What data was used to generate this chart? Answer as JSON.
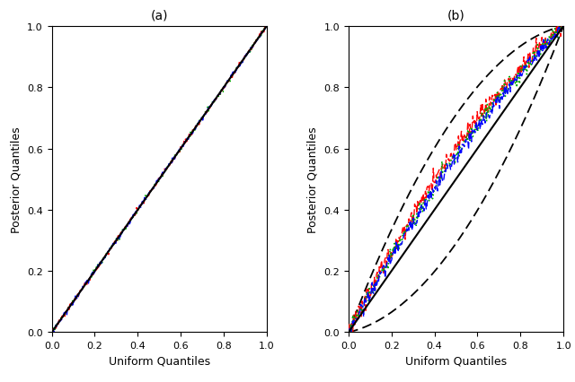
{
  "title_a": "(a)",
  "title_b": "(b)",
  "xlabel": "Uniform Quantiles",
  "ylabel": "Posterior Quantiles",
  "xlim": [
    0.0,
    1.0
  ],
  "ylim": [
    0.0,
    1.0
  ],
  "xticks": [
    0.0,
    0.2,
    0.4,
    0.6,
    0.8,
    1.0
  ],
  "yticks": [
    0.0,
    0.2,
    0.4,
    0.6,
    0.8,
    1.0
  ],
  "n_points": 300,
  "panel_a": {
    "blue_noise_seed": 20,
    "red_noise_seed": 30,
    "green_noise_seed": 40,
    "noise_std": 0.004
  },
  "panel_b": {
    "blue_seed": 20,
    "red_seed": 30,
    "green_seed": 40,
    "ks_band_c": 0.21,
    "blue_bow": 0.07,
    "red_bow": 0.1,
    "green_bow": 0.08
  },
  "colors": {
    "black": "#000000",
    "blue": "#0000FF",
    "red": "#FF0000",
    "green": "#00AA00"
  }
}
